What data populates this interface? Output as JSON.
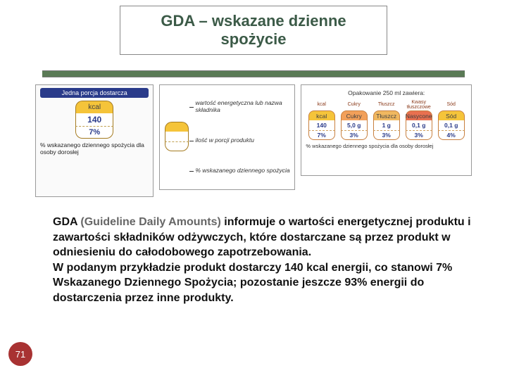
{
  "title": "GDA – wskazane dzienne spożycie",
  "slide_number": "71",
  "divider_color": "#5a7a55",
  "panel1": {
    "header": "Jedna porcja dostarcza",
    "cap_label": "kcal",
    "cap_value": "140",
    "cap_percent": "7%",
    "footer": "% wskazanego dziennego spożycia dla osoby dorosłej",
    "cap_top_color": "#f5c43a"
  },
  "panel2": {
    "label1": "wartość energetyczna lub nazwa składnika",
    "label2": "ilość w porcji produktu",
    "label3": "% wskazanego dziennego spożycia"
  },
  "panel3": {
    "header": "Opakowanie 250 ml zawiera:",
    "footer": "% wskazanego dziennego spożycia dla osoby dorosłej",
    "nutrients": [
      {
        "title": "kcal",
        "label": "kcal",
        "value": "140",
        "percent": "7%",
        "color": "#f5c43a"
      },
      {
        "title": "Cukry",
        "label": "Cukry",
        "value": "5,0 g",
        "percent": "3%",
        "color": "#f2a05a"
      },
      {
        "title": "Tłuszcz",
        "label": "Tłuszcz",
        "value": "1 g",
        "percent": "3%",
        "color": "#f0b860"
      },
      {
        "title": "Kwasy tłuszczowe",
        "label": "Nasycone",
        "value": "0,1 g",
        "percent": "3%",
        "color": "#e87050"
      },
      {
        "title": "Sód",
        "label": "Sód",
        "value": "0,1 g",
        "percent": "4%",
        "color": "#f5c43a"
      }
    ]
  },
  "body": {
    "lead": "GDA ",
    "gray": "(Guideline Daily Amounts)",
    "p1": " informuje o wartości energetycznej produktu i zawartości składników odżywczych, które dostarczane są przez produkt w odniesieniu do całodobowego zapotrzebowania.",
    "p2": "W podanym przykładzie produkt dostarczy 140 kcal energii, co stanowi 7% Wskazanego Dziennego Spożycia; pozostanie jeszcze 93% energii do dostarczenia przez inne produkty."
  }
}
